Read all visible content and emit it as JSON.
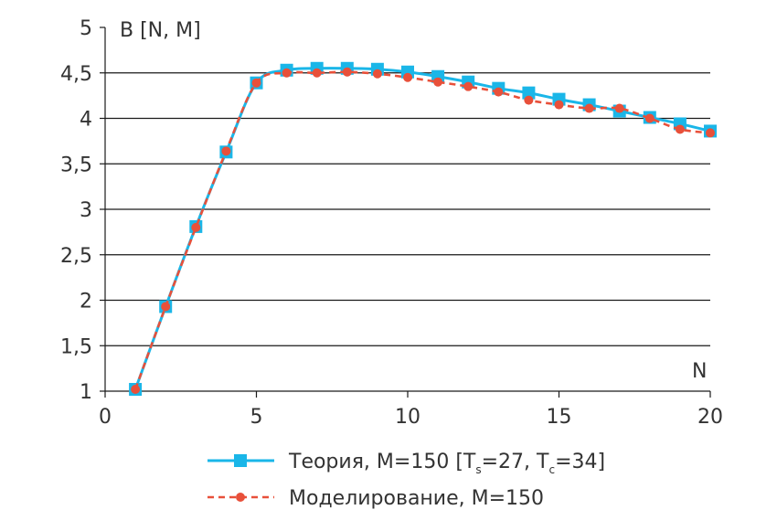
{
  "chart_data": {
    "type": "line",
    "title": "",
    "ylabel": "B [N, M]",
    "xlabel": "N",
    "xlim": [
      0,
      20
    ],
    "ylim": [
      1,
      5
    ],
    "xticks": [
      "0",
      "5",
      "10",
      "15",
      "20"
    ],
    "yticks": [
      "1",
      "1,5",
      "2",
      "2,5",
      "3",
      "3,5",
      "4",
      "4,5",
      "5"
    ],
    "grid": "horizontal",
    "legend_position": "bottom",
    "x": [
      1,
      2,
      3,
      4,
      5,
      6,
      7,
      8,
      9,
      10,
      11,
      12,
      13,
      14,
      15,
      16,
      17,
      18,
      19,
      20
    ],
    "series": [
      {
        "name": "Теория, M=150 [Ts=27, Tc=34]",
        "legend_parts": [
          "Теория, M=150 [T",
          "s",
          "=27, T",
          "c",
          "=34]"
        ],
        "color": "#1ab6e8",
        "marker": "square",
        "line_style": "solid",
        "values": [
          1.02,
          1.93,
          2.81,
          3.63,
          4.39,
          4.53,
          4.55,
          4.55,
          4.54,
          4.51,
          4.46,
          4.4,
          4.33,
          4.28,
          4.21,
          4.15,
          4.08,
          4.01,
          3.94,
          3.86
        ]
      },
      {
        "name": "Моделирование, M=150",
        "legend_parts": [
          "Моделирование, M=150"
        ],
        "color": "#e8503a",
        "marker": "circle",
        "line_style": "dashed",
        "values": [
          1.02,
          1.93,
          2.8,
          3.64,
          4.39,
          4.5,
          4.5,
          4.51,
          4.49,
          4.45,
          4.4,
          4.35,
          4.29,
          4.2,
          4.15,
          4.11,
          4.11,
          4.0,
          3.88,
          3.84
        ]
      }
    ]
  }
}
